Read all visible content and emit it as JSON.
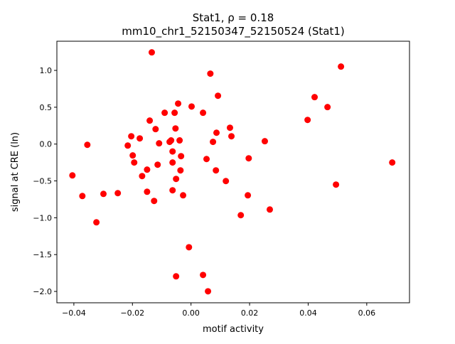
{
  "chart_data": {
    "type": "scatter",
    "title_line1": "Stat1, ρ = 0.18",
    "title_line2": "mm10_chr1_52150347_52150524 (Stat1)",
    "xlabel": "motif activity",
    "ylabel": "signal at CRE (ln)",
    "xlim": [
      -0.0458,
      0.0746
    ],
    "ylim": [
      -2.154,
      1.396
    ],
    "xticks": [
      -0.04,
      -0.02,
      0.0,
      0.02,
      0.04,
      0.06
    ],
    "xtick_labels": [
      "−0.04",
      "−0.02",
      "0.00",
      "0.02",
      "0.04",
      "0.06"
    ],
    "yticks": [
      1.0,
      0.5,
      0.0,
      -0.5,
      -1.0,
      -1.5,
      -2.0
    ],
    "ytick_labels": [
      "1.0",
      "0.5",
      "0.0",
      "−0.5",
      "−1.0",
      "−1.5",
      "−2.0"
    ],
    "grid": false,
    "marker_color": "#ff0000",
    "points": [
      [
        -0.0134,
        1.245
      ],
      [
        0.0066,
        0.956
      ],
      [
        0.0512,
        1.052
      ],
      [
        0.0092,
        0.656
      ],
      [
        0.0422,
        0.637
      ],
      [
        0.0466,
        0.502
      ],
      [
        -0.0044,
        0.55
      ],
      [
        0.0002,
        0.51
      ],
      [
        -0.009,
        0.425
      ],
      [
        -0.0056,
        0.425
      ],
      [
        0.0041,
        0.425
      ],
      [
        -0.0141,
        0.319
      ],
      [
        0.0398,
        0.328
      ],
      [
        -0.0121,
        0.203
      ],
      [
        -0.0053,
        0.212
      ],
      [
        0.0133,
        0.222
      ],
      [
        0.0087,
        0.154
      ],
      [
        -0.0204,
        0.106
      ],
      [
        -0.0175,
        0.077
      ],
      [
        0.0138,
        0.106
      ],
      [
        -0.0068,
        0.05
      ],
      [
        -0.0073,
        0.03
      ],
      [
        -0.0039,
        0.05
      ],
      [
        -0.0109,
        0.01
      ],
      [
        0.0075,
        0.03
      ],
      [
        0.0252,
        0.039
      ],
      [
        -0.0354,
        -0.01
      ],
      [
        -0.0216,
        -0.02
      ],
      [
        -0.0063,
        -0.1
      ],
      [
        -0.0199,
        -0.154
      ],
      [
        -0.0034,
        -0.164
      ],
      [
        -0.0194,
        -0.25
      ],
      [
        -0.0114,
        -0.28
      ],
      [
        -0.0063,
        -0.25
      ],
      [
        0.0053,
        -0.203
      ],
      [
        0.0197,
        -0.193
      ],
      [
        0.0687,
        -0.25
      ],
      [
        -0.015,
        -0.347
      ],
      [
        -0.0036,
        -0.357
      ],
      [
        0.0085,
        -0.357
      ],
      [
        -0.0405,
        -0.425
      ],
      [
        -0.0167,
        -0.434
      ],
      [
        -0.0051,
        -0.473
      ],
      [
        0.0119,
        -0.502
      ],
      [
        0.0495,
        -0.55
      ],
      [
        -0.015,
        -0.647
      ],
      [
        -0.0063,
        -0.627
      ],
      [
        -0.0371,
        -0.705
      ],
      [
        -0.0299,
        -0.676
      ],
      [
        -0.025,
        -0.666
      ],
      [
        -0.0027,
        -0.695
      ],
      [
        0.0194,
        -0.695
      ],
      [
        -0.0126,
        -0.772
      ],
      [
        0.0269,
        -0.888
      ],
      [
        0.017,
        -0.965
      ],
      [
        -0.0323,
        -1.062
      ],
      [
        -0.0007,
        -1.4
      ],
      [
        -0.0051,
        -1.795
      ],
      [
        0.0041,
        -1.776
      ],
      [
        0.0058,
        -1.998
      ]
    ]
  }
}
